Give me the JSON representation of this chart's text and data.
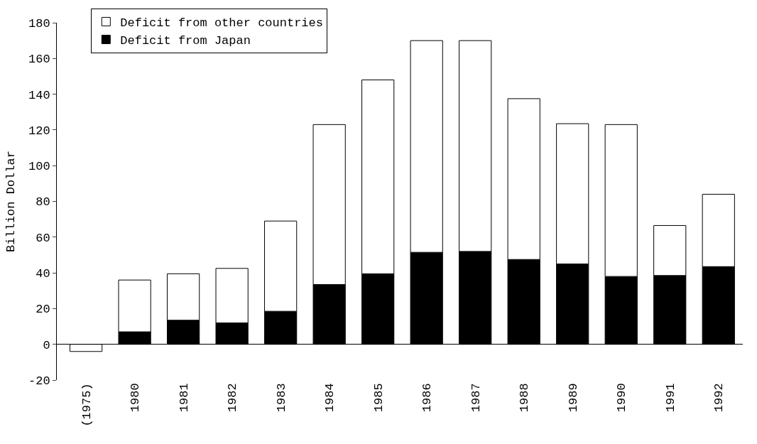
{
  "chart_data": {
    "type": "bar",
    "stacked": true,
    "ylabel": "Billion Dollar",
    "categories": [
      "(1975)",
      "1980",
      "1981",
      "1982",
      "1983",
      "1984",
      "1985",
      "1986",
      "1987",
      "1988",
      "1989",
      "1990",
      "1991",
      "1992"
    ],
    "series": [
      {
        "name": "Deficit from Japan",
        "color": "#000000",
        "values": [
          0,
          7,
          13.5,
          12,
          18.5,
          33.5,
          39.5,
          51.5,
          52,
          47.5,
          45,
          38,
          38.5,
          43.5
        ]
      },
      {
        "name": "Deficit from other countries",
        "color": "#ffffff",
        "values": [
          -4,
          29,
          26,
          30.5,
          50.5,
          89.5,
          108.5,
          118.5,
          118,
          90,
          78.5,
          85,
          28,
          40.5
        ]
      }
    ],
    "ylim": [
      -20,
      180
    ],
    "yticks": [
      -20,
      0,
      20,
      40,
      60,
      80,
      100,
      120,
      140,
      160,
      180
    ],
    "legend": "top left"
  }
}
